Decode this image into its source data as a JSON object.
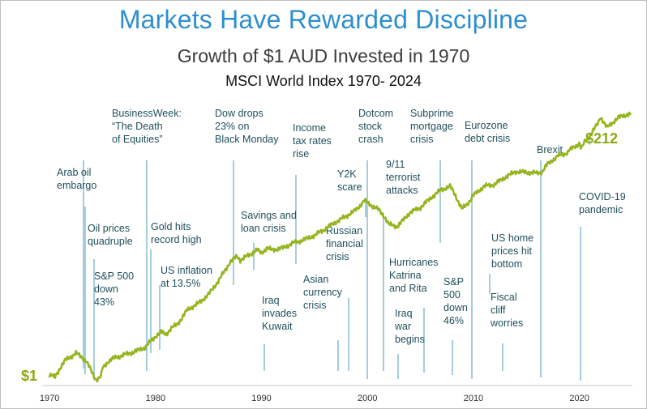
{
  "colors": {
    "title": "#2e8fcf",
    "line": "#95b51f",
    "event_line": "#7fb6cf",
    "annotation": "#1f4f5c",
    "end_label": "#8aaa10"
  },
  "chart_data": {
    "type": "line",
    "title": "Markets Have Rewarded Discipline",
    "subtitle": "Growth of $1 AUD Invested in 1970",
    "subtitle2": "MSCI World Index 1970- 2024",
    "y_scale": "log",
    "xlim": [
      1969.3,
      2025.0
    ],
    "ylim": [
      0.8,
      300
    ],
    "x_ticks": [
      1970,
      1980,
      1990,
      2000,
      2010,
      2020
    ],
    "start_label": "$1",
    "end_label": "$212",
    "series": [
      {
        "name": "Growth of $1 AUD (MSCI World Index)",
        "x": [
          1970,
          1970.5,
          1971,
          1971.5,
          1972,
          1972.5,
          1973,
          1973.5,
          1974,
          1974.4,
          1974.8,
          1975,
          1975.5,
          1976,
          1977,
          1978,
          1979,
          1980,
          1980.5,
          1981,
          1981.5,
          1982,
          1982.5,
          1983,
          1984,
          1985,
          1986,
          1987,
          1987.7,
          1988,
          1989,
          1989.6,
          1990,
          1990.5,
          1991,
          1992,
          1993,
          1994,
          1995,
          1996,
          1997,
          1998,
          1999,
          1999.7,
          2000,
          2000.5,
          2001,
          2001.7,
          2002,
          2002.8,
          2003.2,
          2004,
          2005,
          2006,
          2007,
          2007.8,
          2008.3,
          2008.9,
          2009.2,
          2009.7,
          2010,
          2011,
          2012,
          2013,
          2014,
          2015,
          2016,
          2016.5,
          2017,
          2018,
          2018.9,
          2019,
          2020,
          2020.2,
          2020.6,
          2021,
          2021.8,
          2022,
          2022.6,
          2023,
          2023.5,
          2024,
          2024.8
        ],
        "values": [
          1.0,
          0.95,
          1.15,
          1.35,
          1.45,
          1.55,
          1.45,
          1.3,
          1.05,
          0.9,
          0.95,
          1.15,
          1.3,
          1.4,
          1.5,
          1.6,
          1.75,
          2.2,
          2.4,
          2.3,
          2.6,
          2.8,
          3.2,
          3.8,
          4.3,
          5.2,
          7.0,
          10.0,
          11.5,
          10.5,
          12.0,
          13.0,
          12.2,
          13.5,
          13.0,
          13.5,
          15.0,
          16.0,
          17.5,
          20.0,
          23.0,
          26.0,
          30.0,
          36.0,
          34.0,
          32.0,
          30.0,
          25.0,
          22.0,
          21.0,
          23.0,
          28.0,
          31.0,
          38.0,
          45.0,
          48.0,
          40.0,
          30.0,
          32.0,
          36.0,
          40.0,
          48.0,
          50.0,
          58.0,
          65.0,
          64.0,
          63.0,
          65.0,
          76.0,
          90.0,
          96.0,
          100.0,
          116.0,
          105.0,
          125.0,
          135.0,
          180.0,
          200.0,
          160.0,
          175.0,
          190.0,
          205.0,
          212.0
        ]
      }
    ],
    "events": [
      {
        "year": 1973.0,
        "lines": [
          "Arab oil",
          "embargo"
        ]
      },
      {
        "year": 1973.8,
        "lines": [
          "Oil prices",
          "quadruple"
        ]
      },
      {
        "year": 1974.4,
        "lines": [
          "S&P 500",
          "down",
          "43%"
        ]
      },
      {
        "year": 1979.9,
        "lines": [
          "BusinessWeek:",
          "“The Death",
          "of Equities”"
        ]
      },
      {
        "year": 1980.4,
        "lines": [
          "Gold hits",
          "record high"
        ]
      },
      {
        "year": 1981.1,
        "lines": [
          "US inflation",
          "at 13.5%"
        ]
      },
      {
        "year": 1987.8,
        "lines": [
          "Dow drops",
          "23% on",
          "Black Monday"
        ]
      },
      {
        "year": 1989.7,
        "lines": [
          "Savings and",
          "loan crisis"
        ]
      },
      {
        "year": 1990.6,
        "lines": [
          "Iraq",
          "invades",
          "Kuwait"
        ]
      },
      {
        "year": 1993.6,
        "lines": [
          "Income",
          "tax rates",
          "rise"
        ]
      },
      {
        "year": 1997.6,
        "lines": [
          "Asian",
          "currency",
          "crisis"
        ]
      },
      {
        "year": 1998.7,
        "lines": [
          "Russian",
          "financial",
          "crisis"
        ]
      },
      {
        "year": 2000.1,
        "lines": [
          "Y2K",
          "scare"
        ]
      },
      {
        "year": 2000.3,
        "lines": [
          "Dotcom",
          "stock",
          "crash"
        ]
      },
      {
        "year": 2001.7,
        "lines": [
          "9/11",
          "terrorist",
          "attacks"
        ]
      },
      {
        "year": 2003.2,
        "lines": [
          "Iraq",
          "war",
          "begins"
        ]
      },
      {
        "year": 2005.6,
        "lines": [
          "Hurricanes",
          "Katrina",
          "and Rita"
        ]
      },
      {
        "year": 2007.4,
        "lines": [
          "Subprime",
          "mortgage",
          "crisis"
        ]
      },
      {
        "year": 2008.4,
        "lines": [
          "S&P",
          "500",
          "down",
          "46%"
        ]
      },
      {
        "year": 2010.4,
        "lines": [
          "Eurozone",
          "debt crisis"
        ]
      },
      {
        "year": 2012.8,
        "lines": [
          "Fiscal",
          "cliff",
          "worries"
        ]
      },
      {
        "year": 2012.2,
        "lines": [
          "US home",
          "prices hit",
          "bottom"
        ]
      },
      {
        "year": 2016.5,
        "lines": [
          "Brexit"
        ]
      },
      {
        "year": 2020.2,
        "lines": [
          "COVID-19",
          "pandemic"
        ]
      }
    ]
  }
}
